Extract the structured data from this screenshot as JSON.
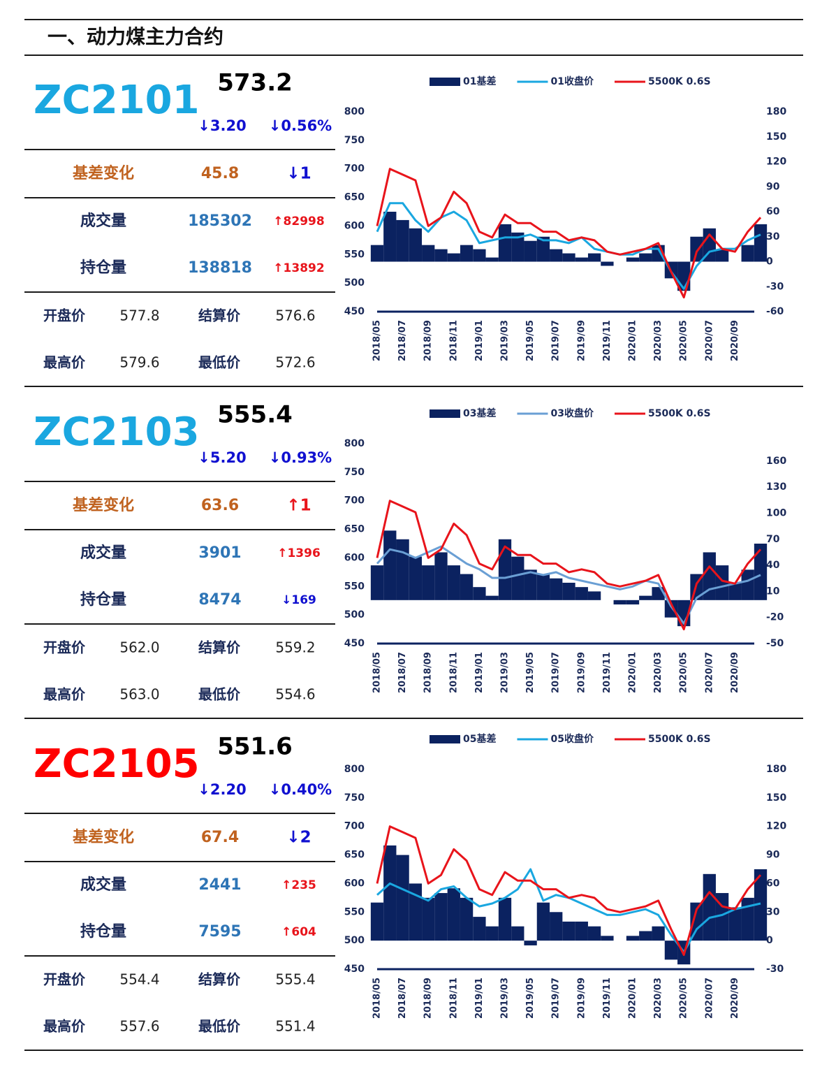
{
  "header": {
    "title": "一、动力煤主力合约"
  },
  "panels": [
    {
      "contract": "ZC2101",
      "contract_color": "#1aa7e0",
      "price": "573.2",
      "change": "↓3.20",
      "change_pct": "↓0.56%",
      "rows": [
        [
          "基差变化",
          "45.8",
          "↓1"
        ],
        [
          "成交量",
          "185302",
          "↑82998"
        ],
        [
          "持仓量",
          "138818",
          "↑13892"
        ]
      ],
      "ohlc": [
        [
          "开盘价",
          "577.8",
          "结算价",
          "576.6"
        ],
        [
          "最高价",
          "579.6",
          "最低价",
          "572.6"
        ]
      ]
    },
    {
      "contract": "ZC2103",
      "contract_color": "#1aa7e0",
      "price": "555.4",
      "change": "↓5.20",
      "change_pct": "↓0.93%",
      "rows": [
        [
          "基差变化",
          "63.6",
          "↑1"
        ],
        [
          "成交量",
          "3901",
          "↑1396"
        ],
        [
          "持仓量",
          "8474",
          "↓169"
        ]
      ],
      "ohlc": [
        [
          "开盘价",
          "562.0",
          "结算价",
          "559.2"
        ],
        [
          "最高价",
          "563.0",
          "最低价",
          "554.6"
        ]
      ]
    },
    {
      "contract": "ZC2105",
      "contract_color": "#ff0000",
      "price": "551.6",
      "change": "↓2.20",
      "change_pct": "↓0.40%",
      "rows": [
        [
          "基差变化",
          "67.4",
          "↓2"
        ],
        [
          "成交量",
          "2441",
          "↑235"
        ],
        [
          "持仓量",
          "7595",
          "↑604"
        ]
      ],
      "ohlc": [
        [
          "开盘价",
          "554.4",
          "结算价",
          "555.4"
        ],
        [
          "最高价",
          "557.6",
          "最低价",
          "551.4"
        ]
      ]
    }
  ],
  "chart_data": [
    {
      "type": "combo",
      "legend": "top",
      "categories": [
        "2018/05",
        null,
        "2018/07",
        null,
        "2018/09",
        null,
        "2018/11",
        null,
        "2019/01",
        null,
        "2019/03",
        null,
        "2019/05",
        null,
        "2019/07",
        null,
        "2019/09",
        null,
        "2019/11",
        null,
        "2020/01",
        null,
        "2020/03",
        null,
        "2020/05",
        null,
        "2020/07",
        null,
        "2020/09",
        null,
        null
      ],
      "ylim": [
        450,
        800
      ],
      "yticks": [
        450,
        500,
        550,
        600,
        650,
        700,
        750,
        800
      ],
      "y2lim": [
        -60,
        180
      ],
      "y2ticks": [
        -60,
        -30,
        0,
        30,
        60,
        90,
        120,
        150,
        180
      ],
      "series": [
        {
          "name": "01基差",
          "type": "bar",
          "axis": "y2",
          "color": "#0b2260",
          "values": [
            20,
            60,
            50,
            40,
            20,
            15,
            10,
            20,
            15,
            5,
            45,
            35,
            25,
            30,
            15,
            10,
            5,
            10,
            -5,
            0,
            5,
            10,
            20,
            -20,
            -35,
            30,
            40,
            15,
            0,
            20,
            45
          ]
        },
        {
          "name": "01收盘价",
          "type": "line",
          "color": "#1aa7e0",
          "values": [
            590,
            640,
            640,
            610,
            590,
            615,
            625,
            610,
            570,
            575,
            580,
            580,
            585,
            575,
            575,
            570,
            580,
            560,
            555,
            550,
            550,
            560,
            560,
            520,
            490,
            530,
            555,
            560,
            560,
            575,
            585
          ]
        },
        {
          "name": "5500K 0.6S",
          "type": "line",
          "color": "#e8141b",
          "values": [
            600,
            700,
            690,
            680,
            600,
            615,
            660,
            640,
            590,
            580,
            620,
            605,
            605,
            590,
            590,
            575,
            580,
            575,
            555,
            550,
            555,
            560,
            570,
            520,
            475,
            555,
            585,
            560,
            555,
            590,
            615
          ]
        }
      ]
    },
    {
      "type": "combo",
      "legend": "top",
      "categories": [
        "2018/05",
        null,
        "2018/07",
        null,
        "2018/09",
        null,
        "2018/11",
        null,
        "2019/01",
        null,
        "2019/03",
        null,
        "2019/05",
        null,
        "2019/07",
        null,
        "2019/09",
        null,
        "2019/11",
        null,
        "2020/01",
        null,
        "2020/03",
        null,
        "2020/05",
        null,
        "2020/07",
        null,
        "2020/09",
        null,
        null
      ],
      "ylim": [
        450,
        800
      ],
      "yticks": [
        450,
        500,
        550,
        600,
        650,
        700,
        750,
        800
      ],
      "y2lim": [
        -50,
        180
      ],
      "y2ticks": [
        -50,
        -20,
        10,
        40,
        70,
        100,
        130,
        160
      ],
      "series": [
        {
          "name": "03基差",
          "type": "bar",
          "axis": "y2",
          "color": "#0b2260",
          "values": [
            40,
            80,
            70,
            50,
            40,
            55,
            40,
            30,
            15,
            5,
            70,
            50,
            35,
            30,
            25,
            20,
            15,
            10,
            0,
            -5,
            -5,
            5,
            15,
            -20,
            -30,
            30,
            55,
            40,
            20,
            35,
            65
          ]
        },
        {
          "name": "03收盘价",
          "type": "line",
          "color": "#6a9fd4",
          "values": [
            590,
            615,
            610,
            600,
            610,
            620,
            605,
            590,
            580,
            565,
            565,
            570,
            575,
            570,
            575,
            565,
            560,
            555,
            550,
            545,
            550,
            560,
            555,
            515,
            485,
            530,
            545,
            550,
            555,
            560,
            570
          ]
        },
        {
          "name": "5500K 0.6S",
          "type": "line",
          "color": "#e8141b",
          "values": [
            600,
            700,
            690,
            680,
            600,
            615,
            660,
            640,
            590,
            580,
            620,
            605,
            605,
            590,
            590,
            575,
            580,
            575,
            555,
            550,
            555,
            560,
            570,
            520,
            475,
            555,
            585,
            560,
            555,
            590,
            615
          ]
        }
      ]
    },
    {
      "type": "combo",
      "legend": "top",
      "categories": [
        "2018/05",
        null,
        "2018/07",
        null,
        "2018/09",
        null,
        "2018/11",
        null,
        "2019/01",
        null,
        "2019/03",
        null,
        "2019/05",
        null,
        "2019/07",
        null,
        "2019/09",
        null,
        "2019/11",
        null,
        "2020/01",
        null,
        "2020/03",
        null,
        "2020/05",
        null,
        "2020/07",
        null,
        "2020/09",
        null,
        null
      ],
      "ylim": [
        450,
        800
      ],
      "yticks": [
        450,
        500,
        550,
        600,
        650,
        700,
        750,
        800
      ],
      "y2lim": [
        -30,
        180
      ],
      "y2ticks": [
        -30,
        0,
        30,
        60,
        90,
        120,
        150,
        180
      ],
      "series": [
        {
          "name": "05基差",
          "type": "bar",
          "axis": "y2",
          "color": "#0b2260",
          "values": [
            40,
            100,
            90,
            60,
            45,
            50,
            55,
            45,
            25,
            15,
            45,
            15,
            -5,
            40,
            30,
            20,
            20,
            15,
            5,
            0,
            5,
            10,
            15,
            -20,
            -25,
            40,
            70,
            50,
            35,
            45,
            75
          ]
        },
        {
          "name": "05收盘价",
          "type": "line",
          "color": "#1aa7e0",
          "values": [
            580,
            600,
            590,
            580,
            570,
            590,
            595,
            575,
            560,
            565,
            575,
            590,
            625,
            570,
            580,
            575,
            565,
            555,
            545,
            545,
            550,
            555,
            545,
            510,
            480,
            520,
            540,
            545,
            555,
            560,
            565
          ]
        },
        {
          "name": "5500K 0.6S",
          "type": "line",
          "color": "#e8141b",
          "values": [
            600,
            700,
            690,
            680,
            600,
            615,
            660,
            640,
            590,
            580,
            620,
            605,
            605,
            590,
            590,
            575,
            580,
            575,
            555,
            550,
            555,
            560,
            570,
            520,
            475,
            555,
            585,
            560,
            555,
            590,
            615
          ]
        }
      ]
    }
  ]
}
